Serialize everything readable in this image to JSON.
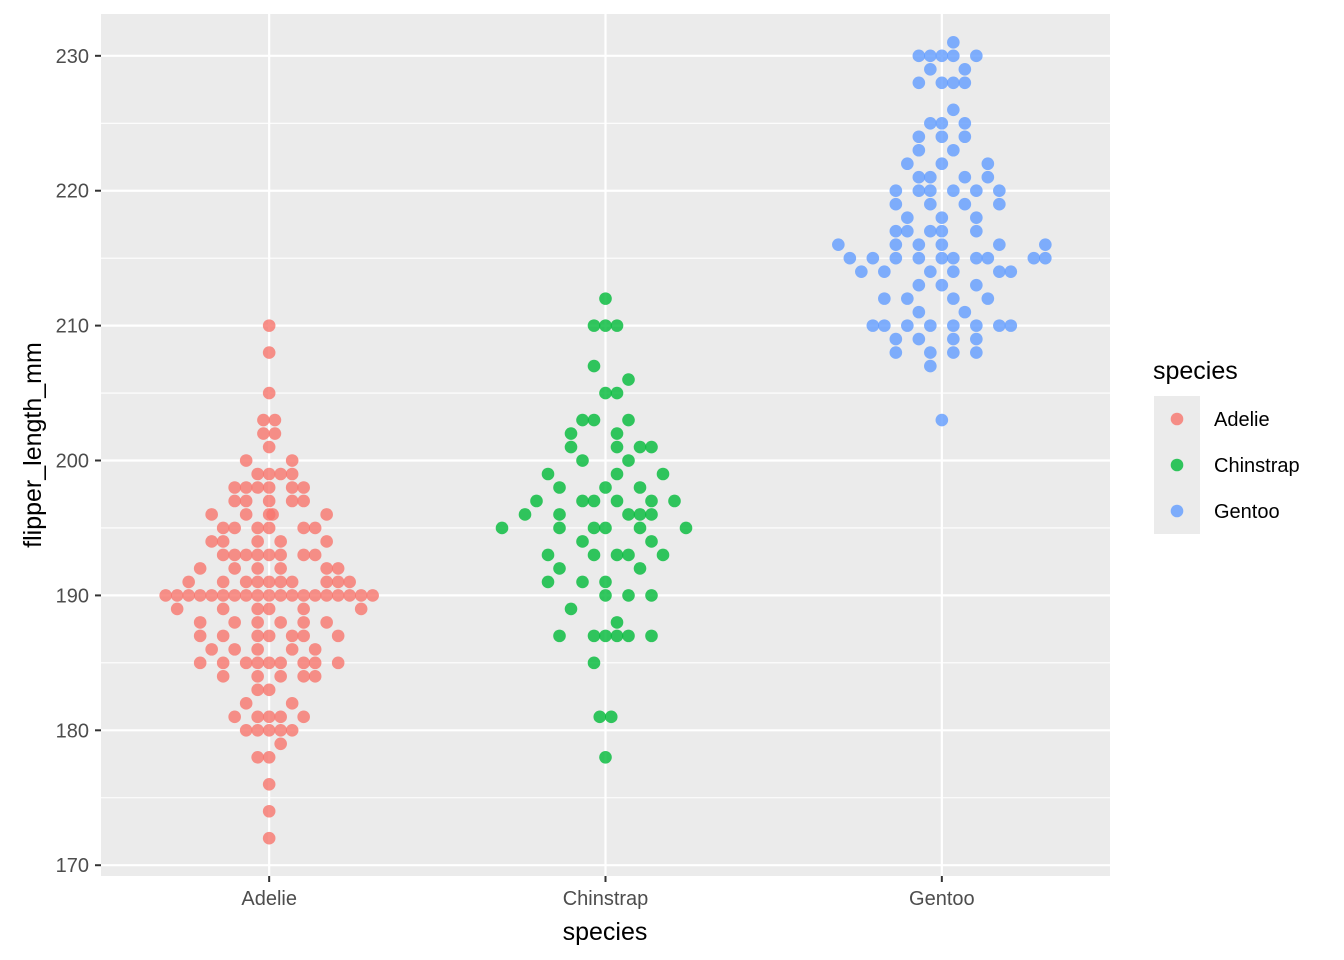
{
  "chart_data": {
    "type": "scatter",
    "subtype": "beeswarm",
    "title": "",
    "xlabel": "species",
    "ylabel": "flipper_length_mm",
    "ylim": [
      169.2,
      233.1
    ],
    "y_ticks": [
      170,
      180,
      190,
      200,
      210,
      220,
      230
    ],
    "categories": [
      "Adelie",
      "Chinstrap",
      "Gentoo"
    ],
    "grid": true,
    "legend": {
      "title": "species",
      "position": "right"
    },
    "series": [
      {
        "name": "Adelie",
        "color": "#F8766D",
        "points": [
          [
            210,
            0
          ],
          [
            208,
            0
          ],
          [
            205,
            0
          ],
          [
            203,
            -0.5
          ],
          [
            203,
            0.5
          ],
          [
            202,
            -0.5
          ],
          [
            202,
            0.5
          ],
          [
            201,
            0
          ],
          [
            200,
            -2
          ],
          [
            200,
            2
          ],
          [
            199,
            -1
          ],
          [
            199,
            0
          ],
          [
            199,
            1
          ],
          [
            199,
            2
          ],
          [
            198,
            -3
          ],
          [
            198,
            -2
          ],
          [
            198,
            -1
          ],
          [
            198,
            0
          ],
          [
            198,
            2
          ],
          [
            198,
            3
          ],
          [
            197,
            -3
          ],
          [
            197,
            -2
          ],
          [
            197,
            0
          ],
          [
            197,
            2
          ],
          [
            197,
            3
          ],
          [
            196,
            -5
          ],
          [
            196,
            -2
          ],
          [
            196,
            0
          ],
          [
            196,
            0.3
          ],
          [
            196,
            5
          ],
          [
            195,
            -4
          ],
          [
            195,
            -3
          ],
          [
            195,
            -1
          ],
          [
            195,
            0
          ],
          [
            195,
            3
          ],
          [
            195,
            4
          ],
          [
            194,
            -5
          ],
          [
            194,
            -4
          ],
          [
            194,
            -1
          ],
          [
            194,
            1
          ],
          [
            194,
            5
          ],
          [
            193,
            -4
          ],
          [
            193,
            -3
          ],
          [
            193,
            -2
          ],
          [
            193,
            -1
          ],
          [
            193,
            0
          ],
          [
            193,
            1
          ],
          [
            193,
            3
          ],
          [
            193,
            4
          ],
          [
            192,
            -6
          ],
          [
            192,
            -3
          ],
          [
            192,
            -1
          ],
          [
            192,
            1
          ],
          [
            192,
            5
          ],
          [
            192,
            6
          ],
          [
            191,
            -7
          ],
          [
            191,
            -4
          ],
          [
            191,
            -2
          ],
          [
            191,
            -1
          ],
          [
            191,
            0
          ],
          [
            191,
            1
          ],
          [
            191,
            2
          ],
          [
            191,
            5
          ],
          [
            191,
            6
          ],
          [
            191,
            7
          ],
          [
            190,
            -9
          ],
          [
            190,
            -8
          ],
          [
            190,
            -7
          ],
          [
            190,
            -6
          ],
          [
            190,
            -5
          ],
          [
            190,
            -4
          ],
          [
            190,
            -3
          ],
          [
            190,
            -2
          ],
          [
            190,
            -1
          ],
          [
            190,
            0
          ],
          [
            190,
            1
          ],
          [
            190,
            2
          ],
          [
            190,
            3
          ],
          [
            190,
            4
          ],
          [
            190,
            5
          ],
          [
            190,
            6
          ],
          [
            190,
            7
          ],
          [
            190,
            8
          ],
          [
            190,
            9
          ],
          [
            189,
            -8
          ],
          [
            189,
            -4
          ],
          [
            189,
            -1
          ],
          [
            189,
            0
          ],
          [
            189,
            3
          ],
          [
            189,
            8
          ],
          [
            188,
            -6
          ],
          [
            188,
            -3
          ],
          [
            188,
            -1
          ],
          [
            188,
            1
          ],
          [
            188,
            3
          ],
          [
            188,
            5
          ],
          [
            187,
            -6
          ],
          [
            187,
            -4
          ],
          [
            187,
            -1
          ],
          [
            187,
            0
          ],
          [
            187,
            2
          ],
          [
            187,
            3
          ],
          [
            187,
            6
          ],
          [
            186,
            -5
          ],
          [
            186,
            -3
          ],
          [
            186,
            -1
          ],
          [
            186,
            2
          ],
          [
            186,
            4
          ],
          [
            185,
            -6
          ],
          [
            185,
            -4
          ],
          [
            185,
            -2
          ],
          [
            185,
            -1
          ],
          [
            185,
            0
          ],
          [
            185,
            1
          ],
          [
            185,
            3
          ],
          [
            185,
            4
          ],
          [
            185,
            6
          ],
          [
            184,
            -4
          ],
          [
            184,
            -1
          ],
          [
            184,
            1
          ],
          [
            184,
            3
          ],
          [
            184,
            4
          ],
          [
            183,
            -1
          ],
          [
            183,
            0
          ],
          [
            182,
            -2
          ],
          [
            182,
            2
          ],
          [
            181,
            -3
          ],
          [
            181,
            -1
          ],
          [
            181,
            0
          ],
          [
            181,
            1
          ],
          [
            181,
            3
          ],
          [
            180,
            -2
          ],
          [
            180,
            -1
          ],
          [
            180,
            0
          ],
          [
            180,
            1
          ],
          [
            180,
            2
          ],
          [
            179,
            1
          ],
          [
            178,
            -1
          ],
          [
            178,
            0
          ],
          [
            176,
            0
          ],
          [
            174,
            0
          ],
          [
            172,
            0
          ]
        ]
      },
      {
        "name": "Chinstrap",
        "color": "#00BA38",
        "points": [
          [
            212,
            0
          ],
          [
            210,
            -1
          ],
          [
            210,
            0
          ],
          [
            210,
            1
          ],
          [
            207,
            -1
          ],
          [
            206,
            2
          ],
          [
            205,
            0
          ],
          [
            205,
            1
          ],
          [
            203,
            -2
          ],
          [
            203,
            -1
          ],
          [
            203,
            2
          ],
          [
            202,
            -3
          ],
          [
            202,
            1
          ],
          [
            201,
            -3
          ],
          [
            201,
            1
          ],
          [
            201,
            3
          ],
          [
            201,
            4
          ],
          [
            200,
            -2
          ],
          [
            200,
            2
          ],
          [
            199,
            -5
          ],
          [
            199,
            1
          ],
          [
            199,
            5
          ],
          [
            198,
            -4
          ],
          [
            198,
            0
          ],
          [
            198,
            3
          ],
          [
            197,
            -6
          ],
          [
            197,
            -2
          ],
          [
            197,
            -1
          ],
          [
            197,
            1
          ],
          [
            197,
            4
          ],
          [
            197,
            6
          ],
          [
            196,
            -7
          ],
          [
            196,
            -4
          ],
          [
            196,
            2
          ],
          [
            196,
            3
          ],
          [
            196,
            4
          ],
          [
            195,
            -9
          ],
          [
            195,
            -4
          ],
          [
            195,
            -1
          ],
          [
            195,
            0
          ],
          [
            195,
            3
          ],
          [
            195,
            7
          ],
          [
            194,
            -2
          ],
          [
            194,
            4
          ],
          [
            193,
            -5
          ],
          [
            193,
            -1
          ],
          [
            193,
            1
          ],
          [
            193,
            2
          ],
          [
            193,
            5
          ],
          [
            192,
            -4
          ],
          [
            192,
            3
          ],
          [
            191,
            -5
          ],
          [
            191,
            -2
          ],
          [
            191,
            0
          ],
          [
            190,
            0
          ],
          [
            190,
            2
          ],
          [
            190,
            4
          ],
          [
            189,
            -3
          ],
          [
            188,
            1
          ],
          [
            187,
            -4
          ],
          [
            187,
            -1
          ],
          [
            187,
            0
          ],
          [
            187,
            1
          ],
          [
            187,
            2
          ],
          [
            187,
            4
          ],
          [
            185,
            -1
          ],
          [
            181,
            -0.5
          ],
          [
            181,
            0.5
          ],
          [
            178,
            0
          ]
        ]
      },
      {
        "name": "Gentoo",
        "color": "#619CFF",
        "points": [
          [
            231,
            1
          ],
          [
            230,
            -2
          ],
          [
            230,
            -1
          ],
          [
            230,
            0
          ],
          [
            230,
            1
          ],
          [
            230,
            3
          ],
          [
            229,
            -1
          ],
          [
            229,
            2
          ],
          [
            228,
            -2
          ],
          [
            228,
            0
          ],
          [
            228,
            1
          ],
          [
            228,
            2
          ],
          [
            226,
            1
          ],
          [
            225,
            -1
          ],
          [
            225,
            0
          ],
          [
            225,
            2
          ],
          [
            224,
            -2
          ],
          [
            224,
            0
          ],
          [
            224,
            2
          ],
          [
            223,
            -2
          ],
          [
            223,
            1
          ],
          [
            222,
            -3
          ],
          [
            222,
            0
          ],
          [
            222,
            4
          ],
          [
            221,
            -2
          ],
          [
            221,
            -1
          ],
          [
            221,
            2
          ],
          [
            221,
            4
          ],
          [
            220,
            -4
          ],
          [
            220,
            -2
          ],
          [
            220,
            -1
          ],
          [
            220,
            1
          ],
          [
            220,
            3
          ],
          [
            220,
            5
          ],
          [
            219,
            -4
          ],
          [
            219,
            -1
          ],
          [
            219,
            2
          ],
          [
            219,
            5
          ],
          [
            218,
            -3
          ],
          [
            218,
            0
          ],
          [
            218,
            3
          ],
          [
            217,
            -4
          ],
          [
            217,
            -3
          ],
          [
            217,
            -1
          ],
          [
            217,
            0
          ],
          [
            217,
            3
          ],
          [
            216,
            -9
          ],
          [
            216,
            -4
          ],
          [
            216,
            -2
          ],
          [
            216,
            0
          ],
          [
            216,
            5
          ],
          [
            216,
            9
          ],
          [
            215,
            -8
          ],
          [
            215,
            -6
          ],
          [
            215,
            -4
          ],
          [
            215,
            -2
          ],
          [
            215,
            0
          ],
          [
            215,
            1
          ],
          [
            215,
            3
          ],
          [
            215,
            4
          ],
          [
            215,
            8
          ],
          [
            215,
            9
          ],
          [
            214,
            -7
          ],
          [
            214,
            -5
          ],
          [
            214,
            -1
          ],
          [
            214,
            1
          ],
          [
            214,
            5
          ],
          [
            214,
            6
          ],
          [
            213,
            -2
          ],
          [
            213,
            0
          ],
          [
            213,
            3
          ],
          [
            212,
            -5
          ],
          [
            212,
            -3
          ],
          [
            212,
            1
          ],
          [
            212,
            4
          ],
          [
            211,
            -2
          ],
          [
            211,
            2
          ],
          [
            210,
            -6
          ],
          [
            210,
            -5
          ],
          [
            210,
            -3
          ],
          [
            210,
            -1
          ],
          [
            210,
            1
          ],
          [
            210,
            3
          ],
          [
            210,
            5
          ],
          [
            210,
            6
          ],
          [
            209,
            -4
          ],
          [
            209,
            -2
          ],
          [
            209,
            1
          ],
          [
            209,
            3
          ],
          [
            208,
            -4
          ],
          [
            208,
            -1
          ],
          [
            208,
            1
          ],
          [
            208,
            3
          ],
          [
            207,
            -1
          ],
          [
            203,
            0
          ]
        ]
      }
    ]
  }
}
